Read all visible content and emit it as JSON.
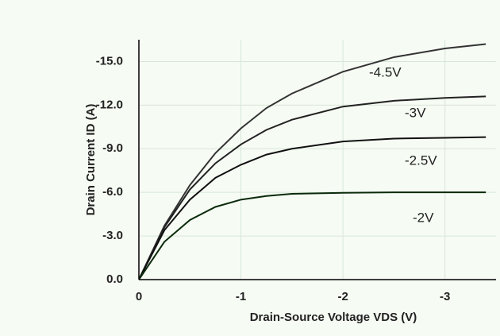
{
  "chart_data": {
    "type": "line",
    "x_label": "Drain-Source Voltage VDS (V)",
    "y_label": "Drain Current ID (A)",
    "x": [
      0,
      -0.25,
      -0.5,
      -0.75,
      -1,
      -1.25,
      -1.5,
      -2,
      -2.5,
      -3,
      -3.4
    ],
    "series": [
      {
        "name": "-4.5V",
        "color": "#333333",
        "values": [
          0,
          -3.7,
          -6.5,
          -8.7,
          -10.4,
          -11.8,
          -12.8,
          -14.3,
          -15.3,
          -15.9,
          -16.2
        ]
      },
      {
        "name": "-3V",
        "color": "#222222",
        "values": [
          0,
          -3.6,
          -6.2,
          -8.0,
          -9.3,
          -10.3,
          -11.0,
          -11.9,
          -12.3,
          -12.5,
          -12.6
        ]
      },
      {
        "name": "-2.5V",
        "color": "#111111",
        "values": [
          0,
          -3.4,
          -5.5,
          -7.0,
          -7.9,
          -8.6,
          -9.0,
          -9.5,
          -9.7,
          -9.75,
          -9.8
        ]
      },
      {
        "name": "-2V",
        "color": "#0a2a0a",
        "values": [
          0,
          -2.6,
          -4.1,
          -5.0,
          -5.5,
          -5.75,
          -5.9,
          -5.97,
          -6.0,
          -6.0,
          -6.0
        ]
      }
    ],
    "xlim": [
      0,
      -3.5
    ],
    "xticks": [
      0,
      -1,
      -2,
      -3
    ],
    "ylim": [
      0,
      -16.5
    ],
    "yticks": [
      {
        "value": 0,
        "label": "0.0"
      },
      {
        "value": -3,
        "label": "-3.0"
      },
      {
        "value": -6,
        "label": "-6.0"
      },
      {
        "value": -9,
        "label": "-9.0"
      },
      {
        "value": -12,
        "label": "-12.0"
      },
      {
        "value": -15,
        "label": "-15.0"
      }
    ],
    "grid": true
  }
}
